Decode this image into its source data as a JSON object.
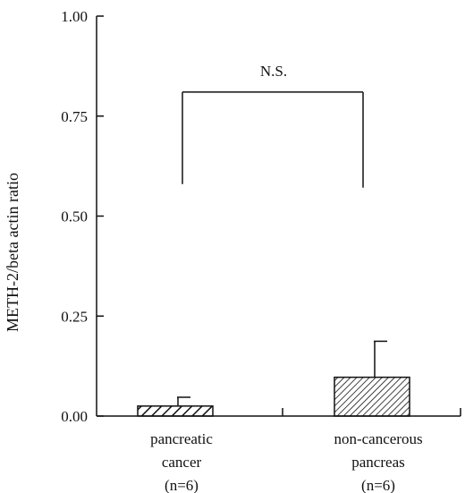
{
  "chart_data": {
    "type": "bar",
    "ylabel": "METH-2/beta actin ratio",
    "ylim": [
      0,
      1.0
    ],
    "yticks": [
      "0.00",
      "0.25",
      "0.50",
      "0.75",
      "1.00"
    ],
    "categories": [
      {
        "line1": "pancreatic",
        "line2": "cancer",
        "line3": "(n=6)"
      },
      {
        "line1": "non-cancerous",
        "line2": "pancreas",
        "line3": "(n=6)"
      }
    ],
    "values": [
      0.025,
      0.097
    ],
    "errors": [
      0.022,
      0.09
    ],
    "significance": {
      "label": "N.S.",
      "between": [
        0,
        1
      ],
      "level": 0.81,
      "left_drop": 0.58,
      "right_drop": 0.58
    },
    "fill": "diagonal-hatch",
    "grid": false,
    "colors": {
      "ink": "#111111",
      "background": "#ffffff"
    }
  }
}
